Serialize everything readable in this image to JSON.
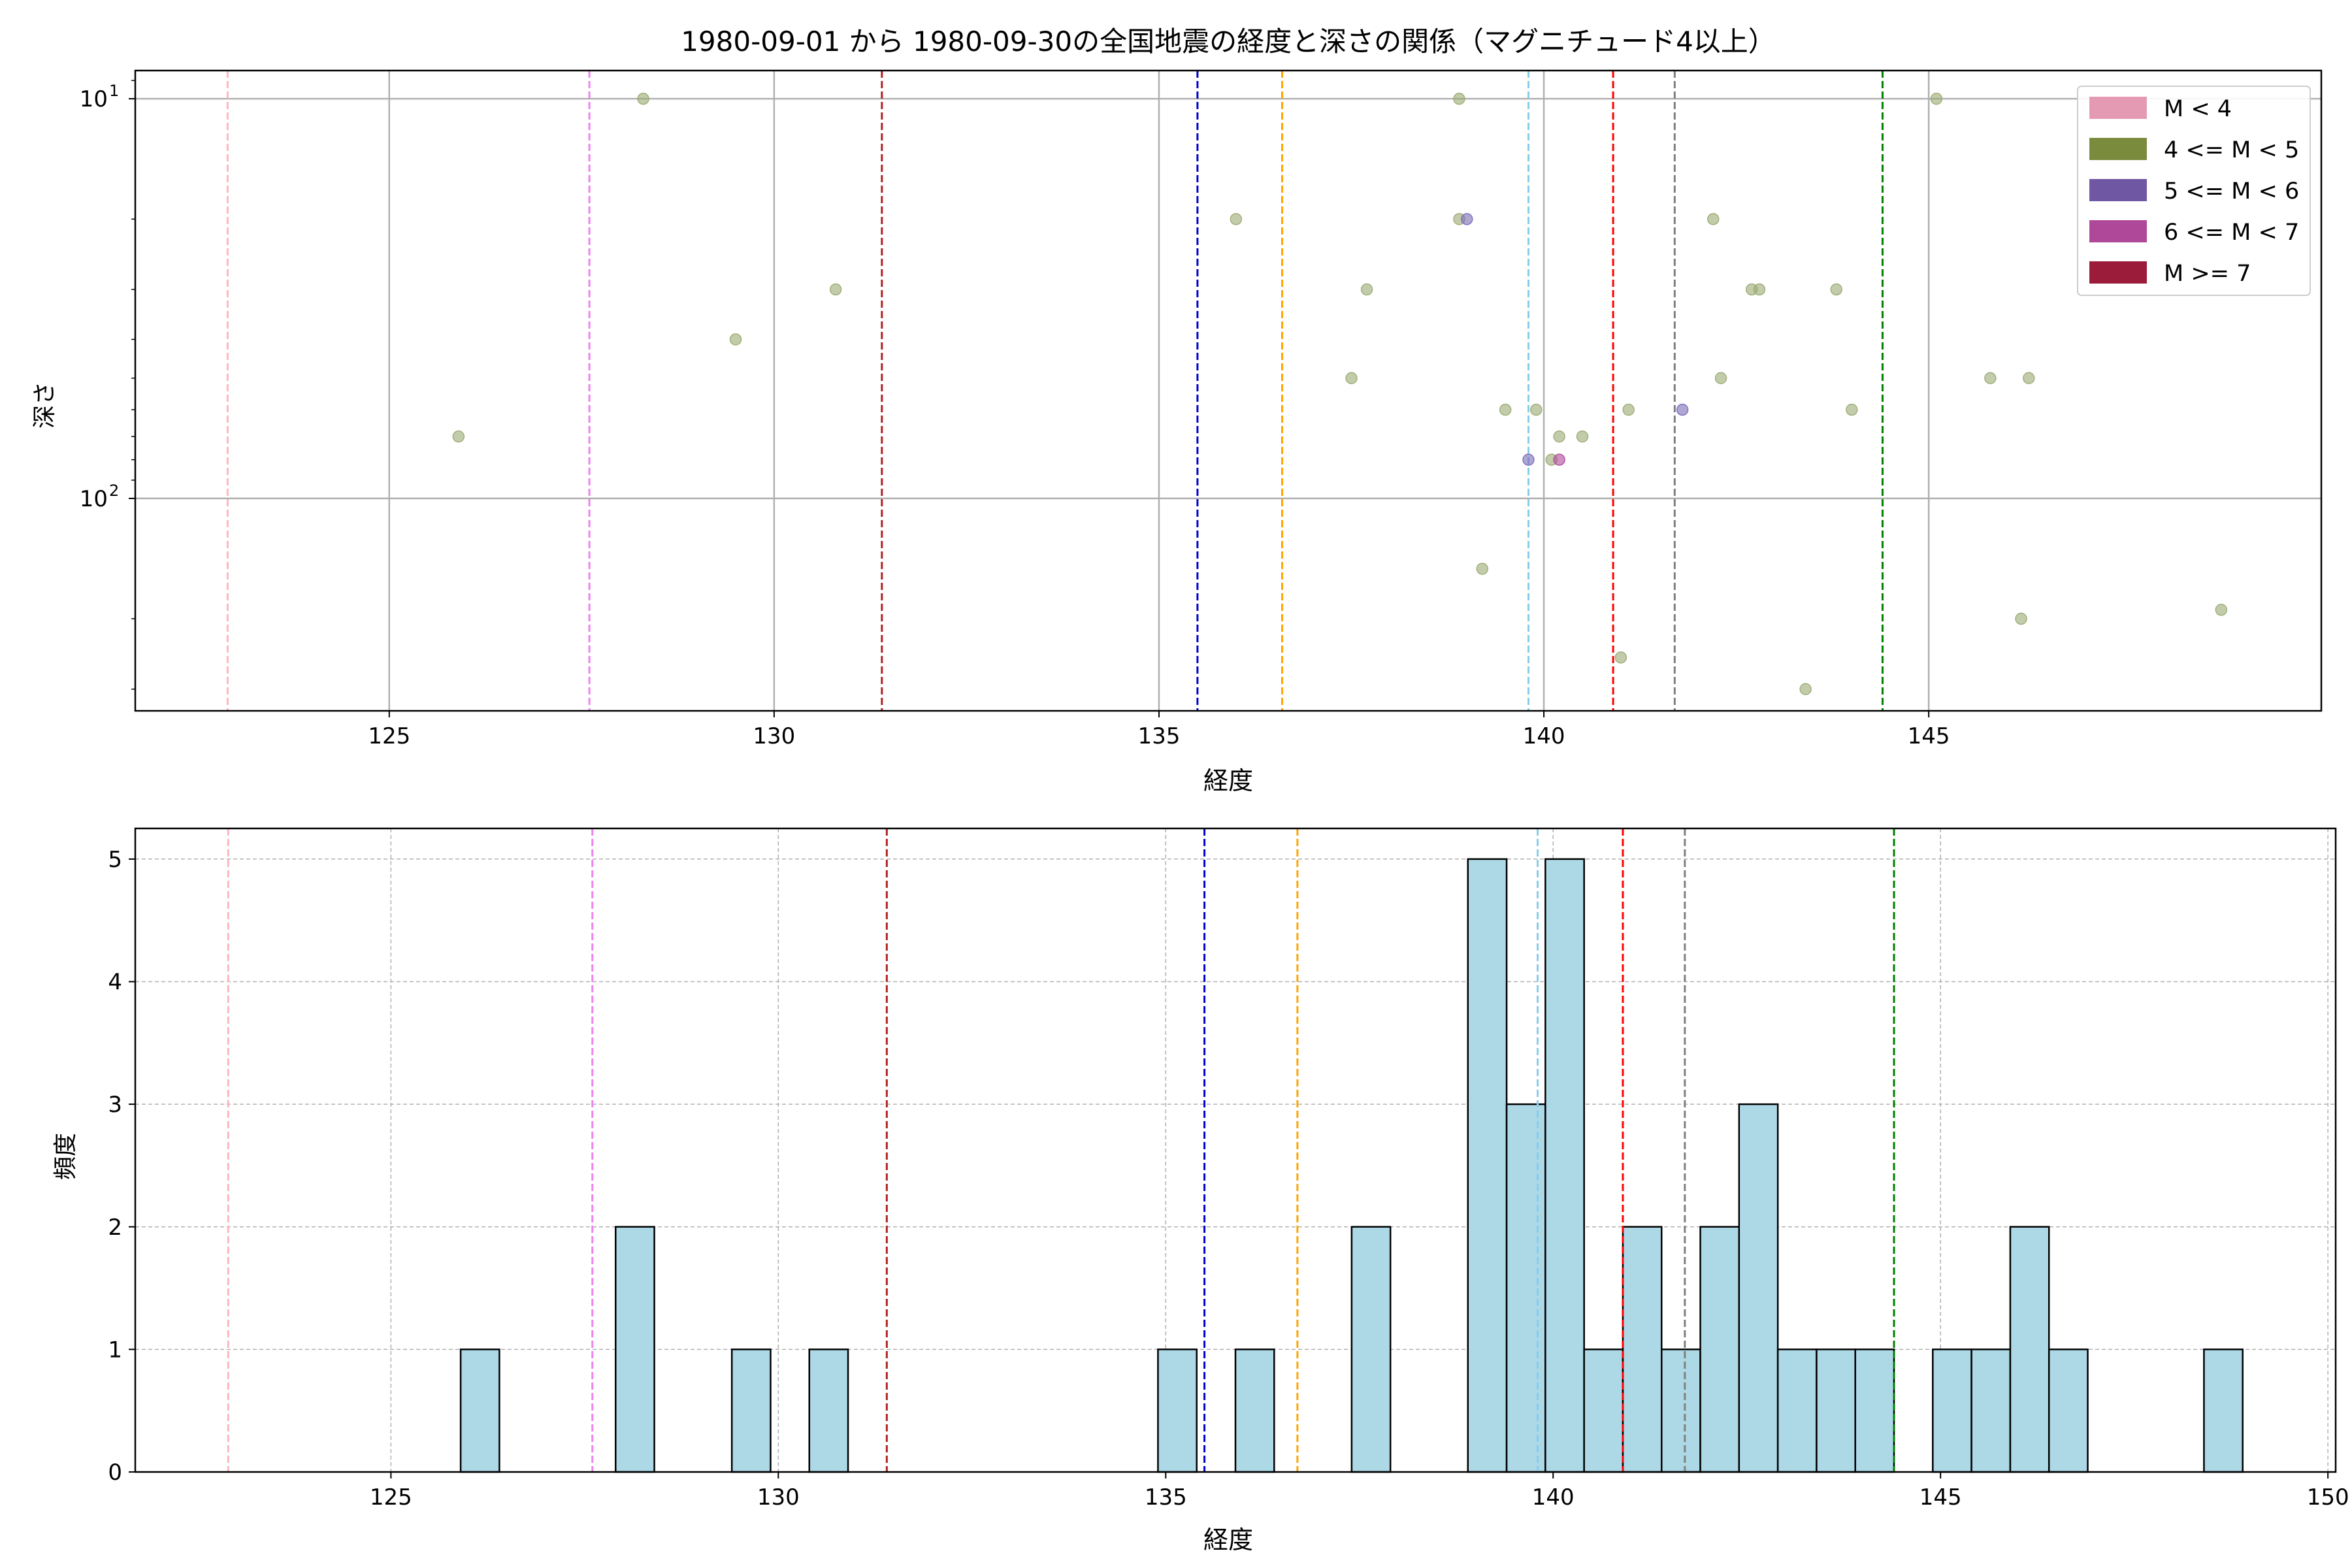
{
  "figure_title": "1980-09-01 から 1980-09-30の全国地震の経度と深さの関係（マグニチュード4以上）",
  "chart_data": [
    {
      "type": "scatter",
      "title": "1980-09-01 から 1980-09-30の全国地震の経度と深さの関係（マグニチュード4以上）",
      "xlabel": "経度",
      "ylabel": "深さ",
      "xlim": [
        121.7,
        150.1
      ],
      "ylim_display": [
        340,
        8.5
      ],
      "yscale": "log",
      "y_inverted": true,
      "grid": true,
      "x_ticks": [
        125,
        130,
        135,
        140,
        145
      ],
      "x_tick_labels": [
        "125",
        "130",
        "135",
        "140",
        "145"
      ],
      "y_ticks": [
        10,
        100
      ],
      "y_tick_labels": [
        {
          "base": "10",
          "exp": "1"
        },
        {
          "base": "10",
          "exp": "2"
        }
      ],
      "legend": {
        "position": "top-right",
        "entries": [
          {
            "label": "M < 4",
            "color": "#e59ab3"
          },
          {
            "label": "4 <= M < 5",
            "color": "#7b8b3e"
          },
          {
            "label": "5 <= M < 6",
            "color": "#6f57a3"
          },
          {
            "label": "6 <= M < 7",
            "color": "#b0489a"
          },
          {
            "label": "M >= 7",
            "color": "#9b1b3b"
          }
        ]
      },
      "vlines": [
        {
          "x": 122.9,
          "color": "#ffb6c1"
        },
        {
          "x": 127.6,
          "color": "#ee82ee"
        },
        {
          "x": 131.4,
          "color": "#b22222"
        },
        {
          "x": 135.5,
          "color": "#0000cd"
        },
        {
          "x": 136.6,
          "color": "#ffa500"
        },
        {
          "x": 139.8,
          "color": "#87ceeb"
        },
        {
          "x": 140.9,
          "color": "#ff0000"
        },
        {
          "x": 141.7,
          "color": "#808080"
        },
        {
          "x": 144.4,
          "color": "#008000"
        }
      ],
      "series": [
        {
          "name": "4 <= M < 5",
          "color": "#9aaa72",
          "points": [
            [
              125.9,
              70
            ],
            [
              128.3,
              10
            ],
            [
              129.5,
              40
            ],
            [
              130.8,
              30
            ],
            [
              136.0,
              20
            ],
            [
              137.5,
              50
            ],
            [
              137.7,
              30
            ],
            [
              138.9,
              10
            ],
            [
              138.9,
              20
            ],
            [
              139.2,
              150
            ],
            [
              139.5,
              60
            ],
            [
              139.9,
              60
            ],
            [
              140.1,
              80
            ],
            [
              140.2,
              70
            ],
            [
              140.5,
              70
            ],
            [
              141.1,
              60
            ],
            [
              141.0,
              250
            ],
            [
              142.2,
              20
            ],
            [
              142.3,
              50
            ],
            [
              142.7,
              30
            ],
            [
              142.8,
              30
            ],
            [
              143.4,
              300
            ],
            [
              143.8,
              30
            ],
            [
              144.0,
              60
            ],
            [
              145.1,
              10
            ],
            [
              145.8,
              50
            ],
            [
              146.2,
              200
            ],
            [
              146.3,
              50
            ],
            [
              148.8,
              190
            ]
          ]
        },
        {
          "name": "5 <= M < 6",
          "color": "#7a6ab8",
          "points": [
            [
              139.0,
              20
            ],
            [
              139.8,
              80
            ],
            [
              141.8,
              60
            ]
          ]
        },
        {
          "name": "6 <= M < 7",
          "color": "#b0489a",
          "points": [
            [
              140.2,
              80
            ]
          ]
        }
      ]
    },
    {
      "type": "bar",
      "subtype": "histogram",
      "xlabel": "経度",
      "ylabel": "頻度",
      "xlim": [
        121.7,
        150.1
      ],
      "ylim": [
        0,
        5.25
      ],
      "grid": true,
      "bin_width": 0.5,
      "bar_color": "#add8e6",
      "x_ticks": [
        125,
        130,
        135,
        140,
        145,
        150
      ],
      "x_tick_labels": [
        "125",
        "130",
        "135",
        "140",
        "145",
        "150"
      ],
      "y_ticks": [
        0,
        1,
        2,
        3,
        4,
        5
      ],
      "y_tick_labels": [
        "0",
        "1",
        "2",
        "3",
        "4",
        "5"
      ],
      "bins": [
        {
          "start": 125.9,
          "count": 1
        },
        {
          "start": 127.9,
          "count": 2
        },
        {
          "start": 129.4,
          "count": 1
        },
        {
          "start": 130.4,
          "count": 1
        },
        {
          "start": 134.9,
          "count": 1
        },
        {
          "start": 135.9,
          "count": 1
        },
        {
          "start": 137.4,
          "count": 2
        },
        {
          "start": 138.9,
          "count": 5
        },
        {
          "start": 139.4,
          "count": 3
        },
        {
          "start": 139.9,
          "count": 5
        },
        {
          "start": 140.4,
          "count": 1
        },
        {
          "start": 140.9,
          "count": 2
        },
        {
          "start": 141.4,
          "count": 1
        },
        {
          "start": 141.9,
          "count": 2
        },
        {
          "start": 142.4,
          "count": 3
        },
        {
          "start": 142.9,
          "count": 1
        },
        {
          "start": 143.4,
          "count": 1
        },
        {
          "start": 143.9,
          "count": 1
        },
        {
          "start": 144.9,
          "count": 1
        },
        {
          "start": 145.4,
          "count": 1
        },
        {
          "start": 145.9,
          "count": 2
        },
        {
          "start": 146.4,
          "count": 1
        },
        {
          "start": 148.4,
          "count": 1
        }
      ],
      "vlines": [
        {
          "x": 122.9,
          "color": "#ffb6c1"
        },
        {
          "x": 127.6,
          "color": "#ee82ee"
        },
        {
          "x": 131.4,
          "color": "#b22222"
        },
        {
          "x": 135.5,
          "color": "#0000cd"
        },
        {
          "x": 136.7,
          "color": "#ffa500"
        },
        {
          "x": 139.8,
          "color": "#87ceeb"
        },
        {
          "x": 140.9,
          "color": "#ff0000"
        },
        {
          "x": 141.7,
          "color": "#808080"
        },
        {
          "x": 144.4,
          "color": "#008000"
        }
      ]
    }
  ]
}
